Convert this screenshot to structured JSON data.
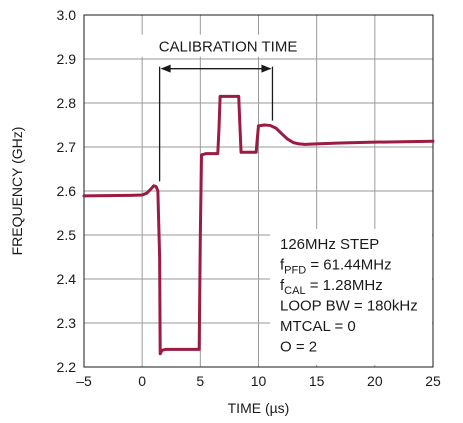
{
  "chart_data": {
    "type": "line",
    "xlabel": "TIME (µs)",
    "ylabel": "FREQUENCY (GHz)",
    "xlim": [
      -5,
      25
    ],
    "ylim": [
      2.2,
      3.0
    ],
    "x_ticks": [
      -5,
      0,
      5,
      10,
      15,
      20,
      25
    ],
    "x_tick_labels": [
      "–5",
      "0",
      "5",
      "10",
      "15",
      "20",
      "25"
    ],
    "y_ticks": [
      2.2,
      2.3,
      2.4,
      2.5,
      2.6,
      2.7,
      2.8,
      2.9,
      3.0
    ],
    "y_tick_labels": [
      "2.2",
      "2.3",
      "2.4",
      "2.5",
      "2.6",
      "2.7",
      "2.8",
      "2.9",
      "3.0"
    ],
    "grid": true,
    "series_color": "#9b1b42",
    "grid_color": "#9a9a9a",
    "series": [
      {
        "x": [
          -5,
          -1,
          0,
          0.4,
          0.8,
          1.0,
          1.2,
          1.35,
          1.5,
          1.55,
          1.7,
          2,
          3,
          4,
          4.9,
          5.0,
          5.1,
          5.5,
          6.0,
          6.5,
          6.6,
          6.7,
          7.5,
          8.3,
          8.4,
          8.5,
          9.0,
          9.5,
          9.8,
          9.9,
          10.0,
          10.5,
          11.0,
          11.5,
          12.0,
          12.5,
          13.0,
          13.5,
          14.0,
          15,
          17,
          20,
          25
        ],
        "y": [
          2.589,
          2.59,
          2.591,
          2.595,
          2.606,
          2.612,
          2.61,
          2.6,
          2.45,
          2.23,
          2.238,
          2.24,
          2.24,
          2.24,
          2.24,
          2.5,
          2.682,
          2.685,
          2.685,
          2.685,
          2.74,
          2.815,
          2.815,
          2.815,
          2.75,
          2.688,
          2.688,
          2.688,
          2.688,
          2.72,
          2.748,
          2.75,
          2.749,
          2.743,
          2.73,
          2.718,
          2.71,
          2.707,
          2.706,
          2.707,
          2.709,
          2.711,
          2.713
        ]
      }
    ],
    "annotations": {
      "calibration_label": "CALIBRATION TIME",
      "calibration_start_x": 1.5,
      "calibration_end_x": 11.2,
      "calibration_y": 2.878
    },
    "legend_placement": "bottom-right",
    "legend_lines": [
      {
        "main": "126MHz STEP",
        "sub": "",
        "rest": ""
      },
      {
        "main": "f",
        "sub": "PFD",
        "rest": " = 61.44MHz"
      },
      {
        "main": "f",
        "sub": "CAL",
        "rest": " = 1.28MHz"
      },
      {
        "main": "LOOP BW = 180kHz",
        "sub": "",
        "rest": ""
      },
      {
        "main": "MTCAL = 0",
        "sub": "",
        "rest": ""
      },
      {
        "main": "O = 2",
        "sub": "",
        "rest": ""
      }
    ]
  }
}
